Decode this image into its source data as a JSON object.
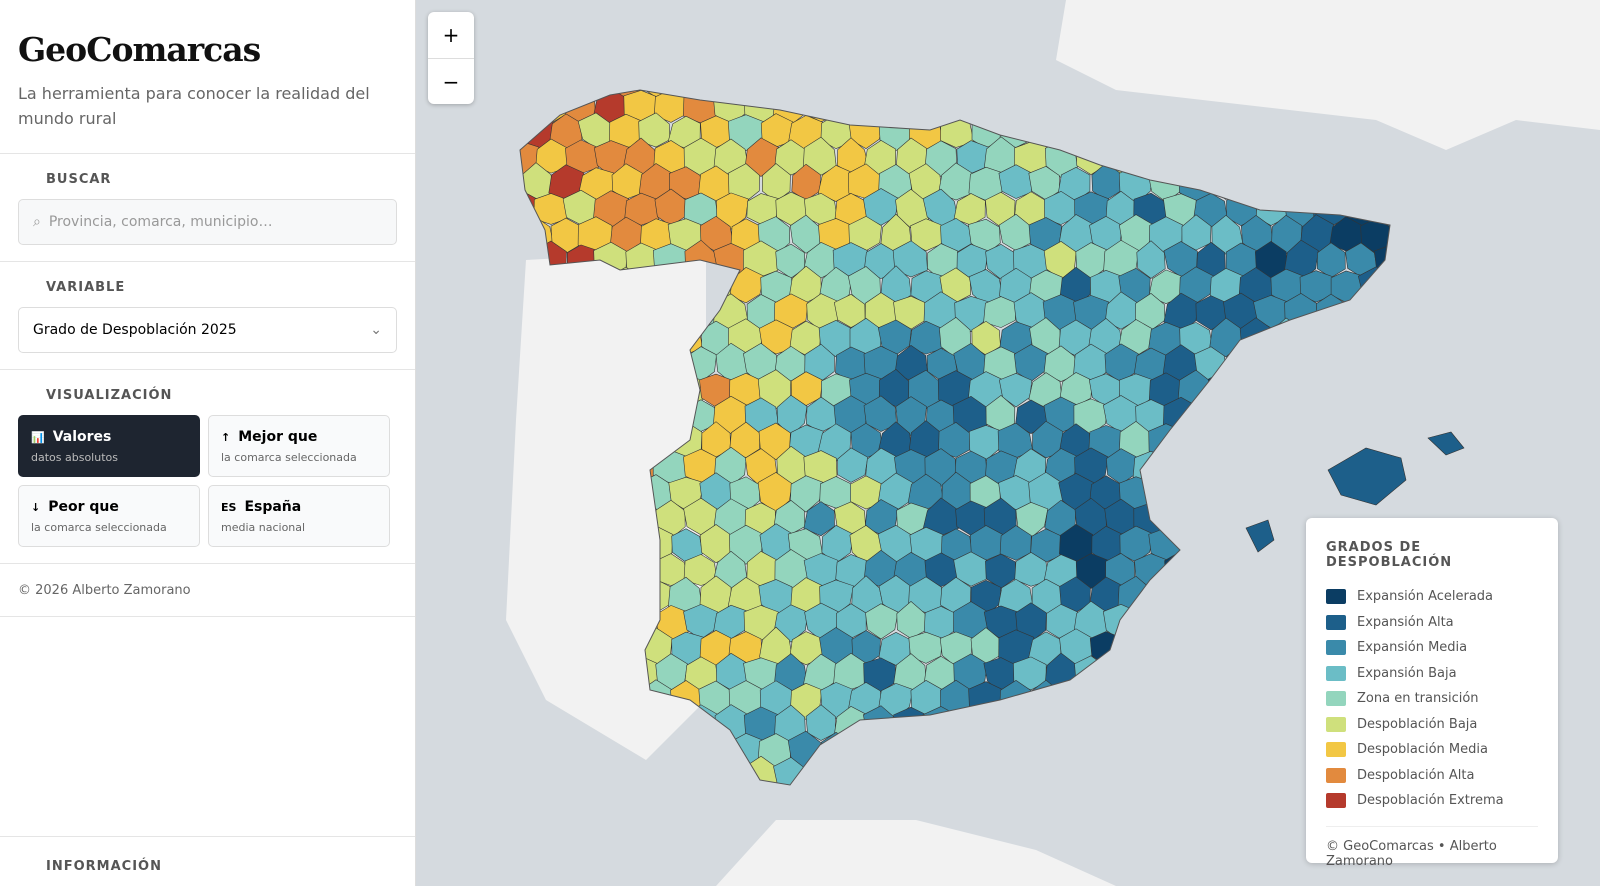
{
  "sidebar": {
    "title": "GeoComarcas",
    "subtitle": "La herramienta para conocer la realidad del mundo rural",
    "search_label": "BUSCAR",
    "search_placeholder": "Provincia, comarca, municipio…",
    "variable_label": "VARIABLE",
    "variable_selected": "Grado de Despoblación 2025",
    "visualization_label": "VISUALIZACIÓN",
    "buttons": [
      {
        "icon": "📊",
        "title": "Valores",
        "subtitle": "datos absolutos"
      },
      {
        "icon": "↑",
        "title": "Mejor que",
        "subtitle": "la comarca seleccionada"
      },
      {
        "icon": "↓",
        "title": "Peor que",
        "subtitle": "la comarca seleccionada"
      },
      {
        "icon": "ES",
        "title": "España",
        "subtitle": "media nacional"
      }
    ],
    "copyright": "© 2026 Alberto Zamorano",
    "info_label": "INFORMACIÓN"
  },
  "map": {
    "zoom_in": "+",
    "zoom_out": "−",
    "legend": {
      "title": "GRADOS DE DESPOBLACIÓN",
      "items": [
        {
          "label": "Expansión Acelerada",
          "color": "#0b3d63"
        },
        {
          "label": "Expansión Alta",
          "color": "#1d5f8a"
        },
        {
          "label": "Expansión Media",
          "color": "#3a8aaa"
        },
        {
          "label": "Expansión Baja",
          "color": "#6bbdc6"
        },
        {
          "label": "Zona en transición",
          "color": "#93d5bd"
        },
        {
          "label": "Despoblación Baja",
          "color": "#cfe07c"
        },
        {
          "label": "Despoblación Media",
          "color": "#f2c744"
        },
        {
          "label": "Despoblación Alta",
          "color": "#e28a3e"
        },
        {
          "label": "Despoblación Extrema",
          "color": "#b53a2c"
        }
      ]
    },
    "attribution": "© GeoComarcas • Alberto Zamorano"
  }
}
